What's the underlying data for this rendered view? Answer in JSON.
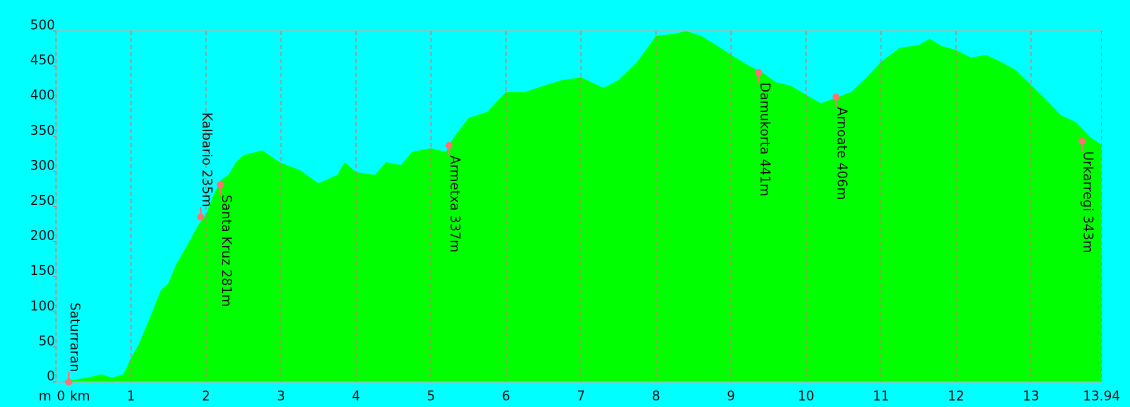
{
  "chart_data": {
    "type": "area",
    "x_label": "km",
    "y_label": "m",
    "x": [
      0,
      0.25,
      0.5,
      0.6,
      0.75,
      0.9,
      1.0,
      1.1,
      1.25,
      1.4,
      1.5,
      1.6,
      1.75,
      1.9,
      2.0,
      2.1,
      2.2,
      2.3,
      2.4,
      2.5,
      2.75,
      2.9,
      3.0,
      3.25,
      3.5,
      3.75,
      3.85,
      4.0,
      4.25,
      4.4,
      4.6,
      4.75,
      5.0,
      5.2,
      5.3,
      5.5,
      5.75,
      6.0,
      6.25,
      6.5,
      6.75,
      7.0,
      7.3,
      7.5,
      7.75,
      8.0,
      8.25,
      8.4,
      8.6,
      8.8,
      9.0,
      9.25,
      9.4,
      9.6,
      9.8,
      10.0,
      10.2,
      10.4,
      10.6,
      10.8,
      11.0,
      11.25,
      11.5,
      11.65,
      11.8,
      12.0,
      12.2,
      12.4,
      12.6,
      12.8,
      13.0,
      13.2,
      13.4,
      13.6,
      13.8,
      13.94
    ],
    "values": [
      0,
      3,
      8,
      11,
      6,
      11,
      34,
      53,
      91,
      131,
      141,
      167,
      195,
      224,
      238,
      266,
      288,
      295,
      313,
      323,
      330,
      319,
      312,
      302,
      283,
      295,
      313,
      299,
      295,
      313,
      309,
      328,
      333,
      328,
      348,
      376,
      385,
      413,
      413,
      422,
      430,
      434,
      419,
      430,
      456,
      493,
      496,
      500,
      493,
      480,
      466,
      450,
      442,
      427,
      422,
      409,
      397,
      405,
      413,
      433,
      456,
      476,
      480,
      489,
      479,
      473,
      462,
      466,
      456,
      444,
      423,
      402,
      380,
      370,
      348,
      338
    ],
    "color": "#00ff00",
    "background": "#00ffff",
    "grid_color": "#e07070",
    "marker_color": "#ff7070",
    "annotations": [
      {
        "label": "Saturraran",
        "x": 0.17,
        "y": 0
      },
      {
        "label": "Kalbario 235m",
        "x": 1.93,
        "y": 235
      },
      {
        "label": "Santa Kruz 281m",
        "x": 2.19,
        "y": 281
      },
      {
        "label": "Armetxa 337m",
        "x": 5.24,
        "y": 337
      },
      {
        "label": "Damukorta 441m",
        "x": 9.37,
        "y": 441
      },
      {
        "label": "Arnoate 406m",
        "x": 10.4,
        "y": 406
      },
      {
        "label": "Urkarregi 343m",
        "x": 13.68,
        "y": 343
      }
    ],
    "xlim": [
      0,
      13.94
    ],
    "xticks": [
      0,
      1,
      2,
      3,
      4,
      5,
      6,
      7,
      8,
      9,
      10,
      11,
      12,
      13,
      13.94
    ],
    "ylim": [
      0,
      500
    ],
    "yticks": [
      0,
      50,
      100,
      150,
      200,
      250,
      300,
      350,
      400,
      450,
      500
    ],
    "grid": true
  }
}
